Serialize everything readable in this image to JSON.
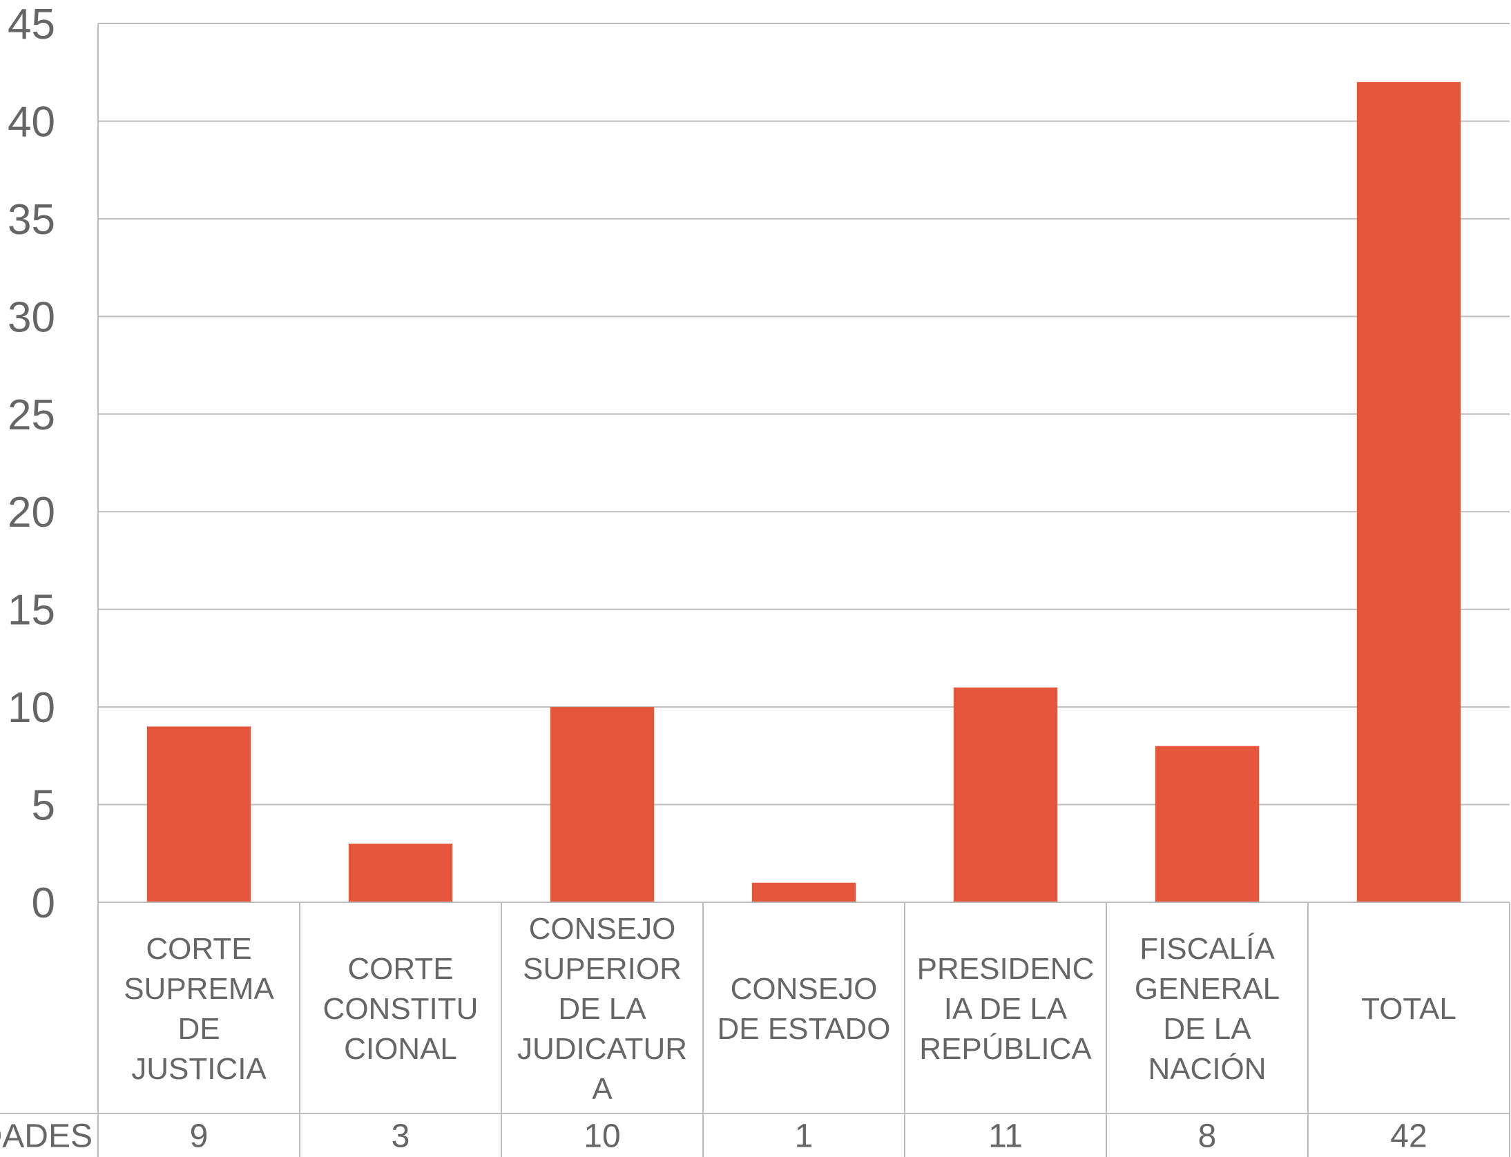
{
  "chart_data": {
    "type": "bar",
    "categories": [
      [
        "CORTE",
        "SUPREMA",
        "DE",
        "JUSTICIA"
      ],
      [
        "CORTE",
        "CONSTITU",
        "CIONAL"
      ],
      [
        "CONSEJO",
        "SUPERIOR",
        "DE LA",
        "JUDICATUR",
        "A"
      ],
      [
        "CONSEJO",
        "DE ESTADO"
      ],
      [
        "PRESIDENC",
        "IA DE LA",
        "REPÚBLICA"
      ],
      [
        "FISCALÍA",
        "GENERAL",
        "DE LA",
        "NACIÓN"
      ],
      [
        "TOTAL"
      ]
    ],
    "values": [
      9,
      3,
      10,
      1,
      11,
      8,
      42
    ],
    "value_labels": [
      "9",
      "3",
      "10",
      "1",
      "11",
      "8",
      "42"
    ],
    "table_row_label": "DADES",
    "yticks": [
      "0",
      "5",
      "10",
      "15",
      "20",
      "25",
      "30",
      "35",
      "40",
      "45"
    ],
    "ylim": [
      0,
      45
    ],
    "grid": true,
    "colors": {
      "bar": "#e5573a",
      "grid": "#bdbdbd",
      "text": "#666666"
    }
  }
}
